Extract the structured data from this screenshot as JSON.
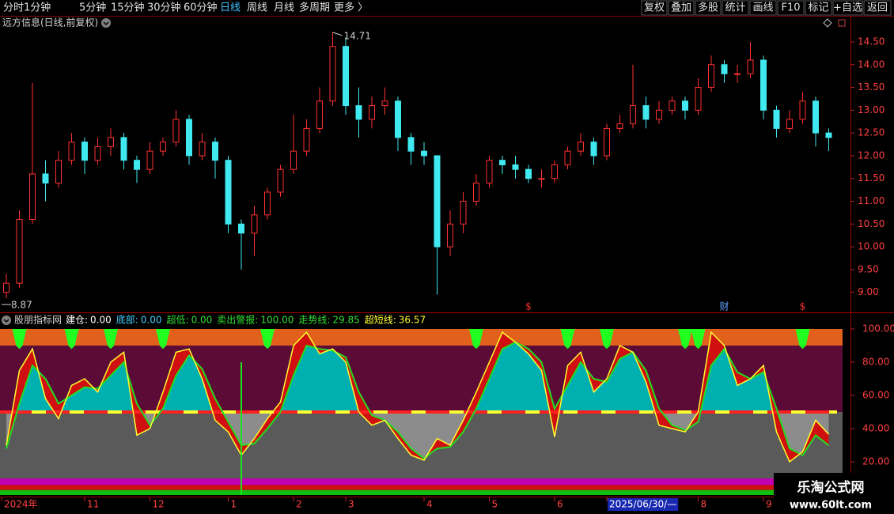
{
  "toolbar": {
    "left": [
      "分时",
      "1分钟",
      "5分钟",
      "15分钟",
      "30分钟",
      "60分钟",
      "日线",
      "周线",
      "月线",
      "多周期",
      "更多 〉"
    ],
    "active": 6,
    "right": [
      "复权",
      "叠加",
      "多股",
      "统计",
      "画线",
      "F10",
      "标记",
      "+自选",
      "返回"
    ]
  },
  "watermark": {
    "title": "乐淘公式网",
    "url": "www.60lt.com"
  },
  "chart_data": [
    {
      "type": "candlestick",
      "title": "远方信息(日线,前复权)",
      "open": [
        9.0,
        9.2,
        10.6,
        11.6,
        11.4,
        11.9,
        12.3,
        11.9,
        12.2,
        12.4,
        11.9,
        11.7,
        12.1,
        12.3,
        12.8,
        12.0,
        12.3,
        11.9,
        10.5,
        10.3,
        10.7,
        11.2,
        11.7,
        12.1,
        12.6,
        13.2,
        14.4,
        13.1,
        12.8,
        13.1,
        13.2,
        12.4,
        12.1,
        12.0,
        10.0,
        10.5,
        11.0,
        11.4,
        11.9,
        11.8,
        11.7,
        11.5,
        11.5,
        11.8,
        12.1,
        12.3,
        12.0,
        12.6,
        12.7,
        13.1,
        12.8,
        13.0,
        13.2,
        13.0,
        13.5,
        14.0,
        13.8,
        13.8,
        14.1,
        13.0,
        12.6,
        12.8,
        13.2,
        12.5
      ],
      "close": [
        9.2,
        10.6,
        11.6,
        11.4,
        11.9,
        12.3,
        11.9,
        12.2,
        12.4,
        11.9,
        11.7,
        12.1,
        12.3,
        12.8,
        12.0,
        12.3,
        11.9,
        10.5,
        10.3,
        10.7,
        11.2,
        11.7,
        12.1,
        12.6,
        13.2,
        14.4,
        13.1,
        12.8,
        13.1,
        13.2,
        12.4,
        12.1,
        12.0,
        10.0,
        10.5,
        11.0,
        11.4,
        11.9,
        11.8,
        11.7,
        11.5,
        11.5,
        11.8,
        12.1,
        12.3,
        12.0,
        12.6,
        12.7,
        13.1,
        12.8,
        13.0,
        13.2,
        13.0,
        13.5,
        14.0,
        13.8,
        13.8,
        14.1,
        13.0,
        12.6,
        12.8,
        13.2,
        12.5,
        12.4
      ],
      "high": [
        9.4,
        10.8,
        13.6,
        11.9,
        12.1,
        12.5,
        12.4,
        12.4,
        12.6,
        12.5,
        12.0,
        12.3,
        12.4,
        13.0,
        12.9,
        12.5,
        12.4,
        12.0,
        10.6,
        10.9,
        11.3,
        11.8,
        12.9,
        12.8,
        13.5,
        14.71,
        14.6,
        13.5,
        13.3,
        13.5,
        13.3,
        12.5,
        12.3,
        12.0,
        10.8,
        11.2,
        11.6,
        12.0,
        12.0,
        12.0,
        11.8,
        11.7,
        11.9,
        12.2,
        12.5,
        12.4,
        12.7,
        12.9,
        14.0,
        13.3,
        13.2,
        13.3,
        13.3,
        13.7,
        14.2,
        14.1,
        14.0,
        14.5,
        14.2,
        13.1,
        13.0,
        13.4,
        13.3,
        12.6
      ],
      "low": [
        8.87,
        9.1,
        10.5,
        11.0,
        11.3,
        11.8,
        11.6,
        11.8,
        12.0,
        11.7,
        11.4,
        11.6,
        12.0,
        12.2,
        11.8,
        11.9,
        11.5,
        10.3,
        9.5,
        9.8,
        10.6,
        11.1,
        11.6,
        12.0,
        12.5,
        13.1,
        12.9,
        12.4,
        12.6,
        12.9,
        12.1,
        11.8,
        11.8,
        8.95,
        9.8,
        10.3,
        10.9,
        11.3,
        11.6,
        11.5,
        11.4,
        11.3,
        11.4,
        11.7,
        12.0,
        11.8,
        11.9,
        12.5,
        12.6,
        12.6,
        12.7,
        12.9,
        12.8,
        12.9,
        13.4,
        13.6,
        13.6,
        13.7,
        12.8,
        12.4,
        12.5,
        12.7,
        12.2,
        12.1
      ],
      "up_color": "#ff3030",
      "down_color": "#40e8f0",
      "ylim": [
        8.56,
        14.76
      ],
      "yticks": [
        {
          "value": 14.5,
          "label": "14.50"
        },
        {
          "value": 14.0,
          "label": "14.00"
        },
        {
          "value": 13.5,
          "label": "13.50"
        },
        {
          "value": 13.0,
          "label": "13.00"
        },
        {
          "value": 12.5,
          "label": "12.50"
        },
        {
          "value": 12.0,
          "label": "12.00"
        },
        {
          "value": 11.5,
          "label": "11.50"
        },
        {
          "value": 11.0,
          "label": "11.00"
        },
        {
          "value": 10.5,
          "label": "10.50"
        },
        {
          "value": 10.0,
          "label": "10.00"
        },
        {
          "value": 9.5,
          "label": "9.50"
        },
        {
          "value": 9.0,
          "label": "9.00"
        }
      ],
      "markers": [
        {
          "index": 40,
          "label": "$",
          "color": "#ff3030"
        },
        {
          "index": 55,
          "label": "财",
          "color": "#60a0ff"
        },
        {
          "index": 61,
          "label": "$",
          "color": "#ff3030"
        }
      ]
    },
    {
      "type": "indicator",
      "title": "股朋指标网",
      "readouts": [
        {
          "name": "建仓:",
          "value": "0.00",
          "color": "#ffffff"
        },
        {
          "name": "底部:",
          "value": "0.00",
          "color": "#40d0ff"
        },
        {
          "name": "超低:",
          "value": "0.00",
          "color": "#30e030"
        },
        {
          "name": "卖出警报:",
          "value": "100.00",
          "color": "#30e030"
        },
        {
          "name": "走势线:",
          "value": "29.85",
          "color": "#30e030"
        },
        {
          "name": "超短线:",
          "value": "36.57",
          "color": "#ffff30"
        }
      ],
      "series": [
        {
          "color": "#ffff30",
          "values": [
            30,
            75,
            88,
            58,
            46,
            66,
            70,
            62,
            80,
            86,
            36,
            40,
            62,
            86,
            88,
            70,
            45,
            38,
            24,
            34,
            46,
            56,
            90,
            98,
            85,
            88,
            80,
            50,
            42,
            45,
            34,
            24,
            21,
            34,
            30,
            45,
            62,
            80,
            98,
            92,
            85,
            75,
            35,
            78,
            86,
            62,
            70,
            90,
            86,
            68,
            42,
            40,
            38,
            50,
            98,
            90,
            66,
            70,
            78,
            38,
            20,
            26,
            45,
            36.57
          ]
        },
        {
          "color": "#20e020",
          "values": [
            28,
            55,
            78,
            70,
            55,
            60,
            65,
            64,
            72,
            80,
            55,
            42,
            52,
            72,
            84,
            76,
            58,
            44,
            30,
            31,
            40,
            50,
            72,
            90,
            88,
            87,
            83,
            62,
            48,
            45,
            38,
            28,
            22,
            28,
            29,
            38,
            52,
            70,
            88,
            92,
            88,
            80,
            52,
            66,
            80,
            70,
            68,
            82,
            86,
            75,
            52,
            42,
            39,
            44,
            78,
            88,
            74,
            70,
            74,
            52,
            28,
            24,
            36,
            29.85
          ]
        }
      ],
      "zones": [
        {
          "from": 90,
          "to": 100,
          "color": "#e0601c"
        },
        {
          "from": 50,
          "to": 90,
          "color": "#5c0a36"
        },
        {
          "from": 10,
          "to": 50,
          "color": "#5a5a5a"
        },
        {
          "from": 6,
          "to": 10,
          "color": "#c000b0"
        },
        {
          "from": 3,
          "to": 6,
          "color": "#d01010"
        },
        {
          "from": 0,
          "to": 3,
          "color": "#10c010"
        }
      ],
      "high_fill": "#00b0b0",
      "low_fill": "#8c8c8c",
      "cross_fill": "#d01010",
      "midline": 50,
      "signal_bottom": 88,
      "signals": [
        1,
        5,
        8,
        12,
        20,
        36,
        43,
        46,
        52,
        53,
        61
      ],
      "buy_line": {
        "index": 18,
        "top": 80
      },
      "ylim": [
        0,
        100
      ],
      "yticks": [
        {
          "value": 100,
          "label": "100.00"
        },
        {
          "value": 80,
          "label": "80.00"
        },
        {
          "value": 60,
          "label": "60.00"
        },
        {
          "value": 40,
          "label": "40.00"
        },
        {
          "value": 20,
          "label": "20.00"
        }
      ],
      "x_labels": [
        {
          "index": 0,
          "label": "2024年"
        },
        {
          "index": 6,
          "label": "11"
        },
        {
          "index": 11,
          "label": "12"
        },
        {
          "index": 17,
          "label": "1"
        },
        {
          "index": 22,
          "label": "2"
        },
        {
          "index": 26,
          "label": "3"
        },
        {
          "index": 32,
          "label": "4"
        },
        {
          "index": 37,
          "label": "5"
        },
        {
          "index": 42,
          "label": "6"
        },
        {
          "index": 46,
          "label": "2025/06/30/—",
          "highlight": true
        },
        {
          "index": 53,
          "label": "8"
        },
        {
          "index": 58,
          "label": "9"
        }
      ]
    }
  ]
}
